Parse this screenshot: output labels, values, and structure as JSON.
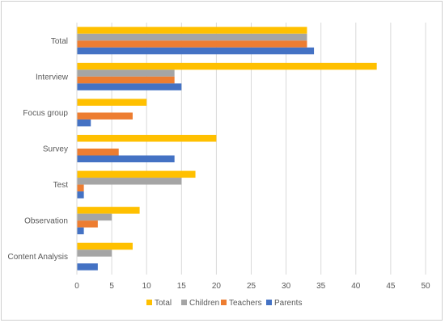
{
  "chart_data": {
    "type": "bar",
    "orientation": "horizontal",
    "categories": [
      "Total",
      "Interview",
      "Focus group",
      "Survey",
      "Test",
      "Observation",
      "Content Analysis"
    ],
    "series": [
      {
        "name": "Total",
        "color": "#FFC000",
        "values": [
          33,
          43,
          10,
          20,
          17,
          9,
          8
        ]
      },
      {
        "name": "Children",
        "color": "#A5A5A5",
        "values": [
          33,
          14,
          0,
          0,
          15,
          5,
          5
        ]
      },
      {
        "name": "Teachers",
        "color": "#ED7D31",
        "values": [
          33,
          14,
          8,
          6,
          1,
          3,
          0
        ]
      },
      {
        "name": "Parents",
        "color": "#4472C4",
        "values": [
          34,
          15,
          2,
          14,
          1,
          1,
          3
        ]
      }
    ],
    "xlim": [
      0,
      50
    ],
    "xticks": [
      0,
      5,
      10,
      15,
      20,
      25,
      30,
      35,
      40,
      45,
      50
    ],
    "grid": true,
    "legend_position": "bottom",
    "title": "",
    "xlabel": "",
    "ylabel": ""
  }
}
